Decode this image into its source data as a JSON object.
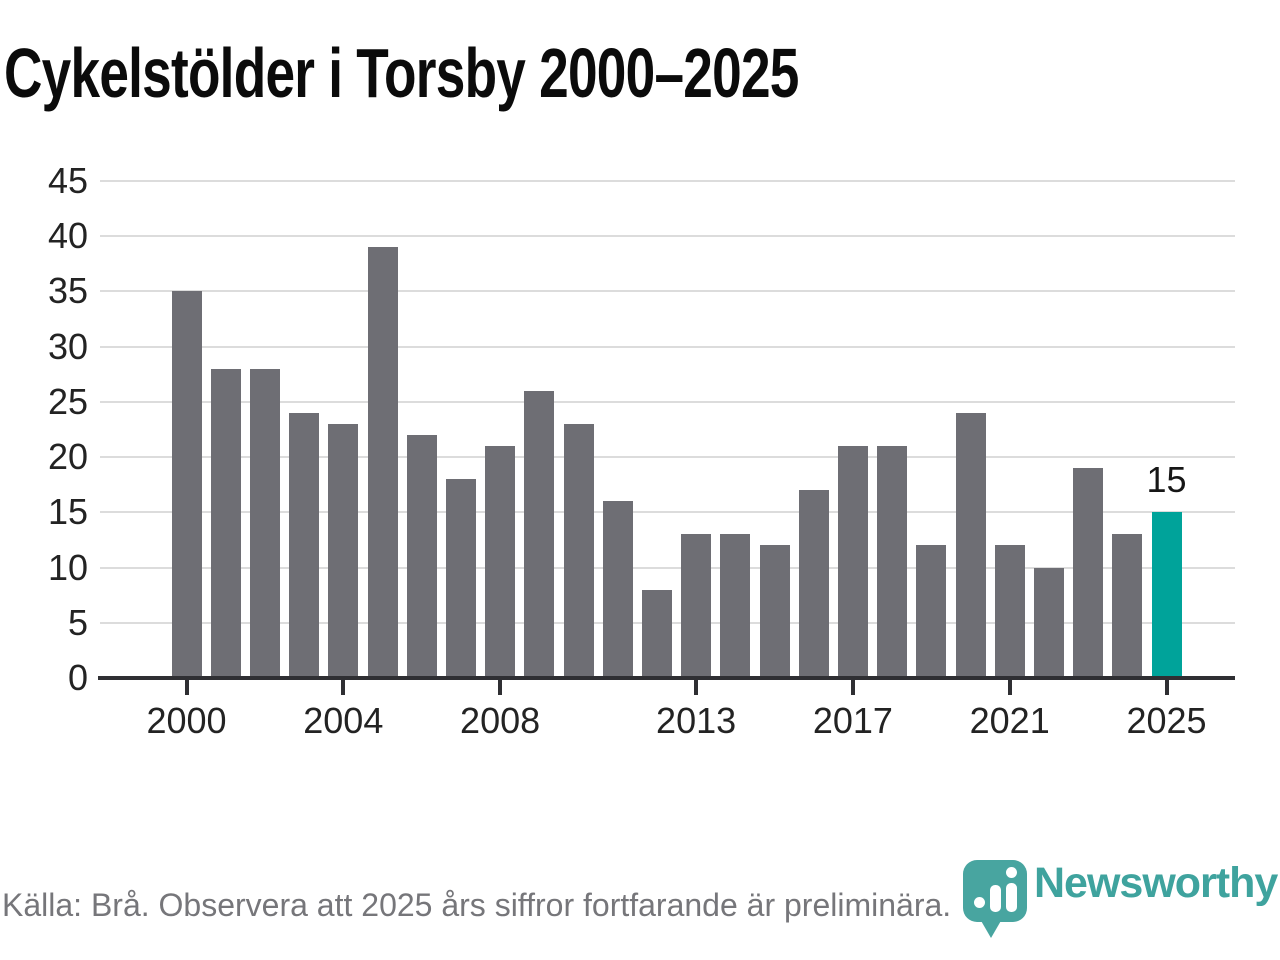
{
  "title": "Cykelstölder i Torsby 2000–2025",
  "chart_data": {
    "type": "bar",
    "x": [
      2000,
      2001,
      2002,
      2003,
      2004,
      2005,
      2006,
      2007,
      2008,
      2009,
      2010,
      2011,
      2012,
      2013,
      2014,
      2015,
      2016,
      2017,
      2018,
      2019,
      2020,
      2021,
      2022,
      2023,
      2024,
      2025
    ],
    "values": [
      35,
      28,
      28,
      24,
      23,
      39,
      22,
      18,
      21,
      26,
      23,
      16,
      8,
      13,
      13,
      12,
      17,
      21,
      21,
      12,
      24,
      12,
      10,
      19,
      13,
      15
    ],
    "title": "Cykelstölder i Torsby 2000–2025",
    "xlabel": "",
    "ylabel": "",
    "ylim": [
      0,
      45
    ],
    "yticks": [
      0,
      5,
      10,
      15,
      20,
      25,
      30,
      35,
      40,
      45
    ],
    "xticks": [
      2000,
      2004,
      2008,
      2013,
      2017,
      2021,
      2025
    ],
    "grid": "horizontal",
    "legend": "none",
    "highlight_year": 2025,
    "annotation": {
      "text": "15",
      "year": 2025
    },
    "colors": {
      "bar": "#6e6e74",
      "highlight": "#00a39a",
      "gridline": "#dcdcdc",
      "axis": "#2f2f33",
      "tick_label": "#232323"
    }
  },
  "footer": {
    "source_text": "Källa: Brå. Observera att 2025 års siffror fortfarande är preliminära."
  },
  "branding": {
    "wordmark": "Newsworthy",
    "wordmark_color": "#3fa39e",
    "icon_color": "#48a5a0",
    "icon_name": "newsworthy-logo"
  }
}
